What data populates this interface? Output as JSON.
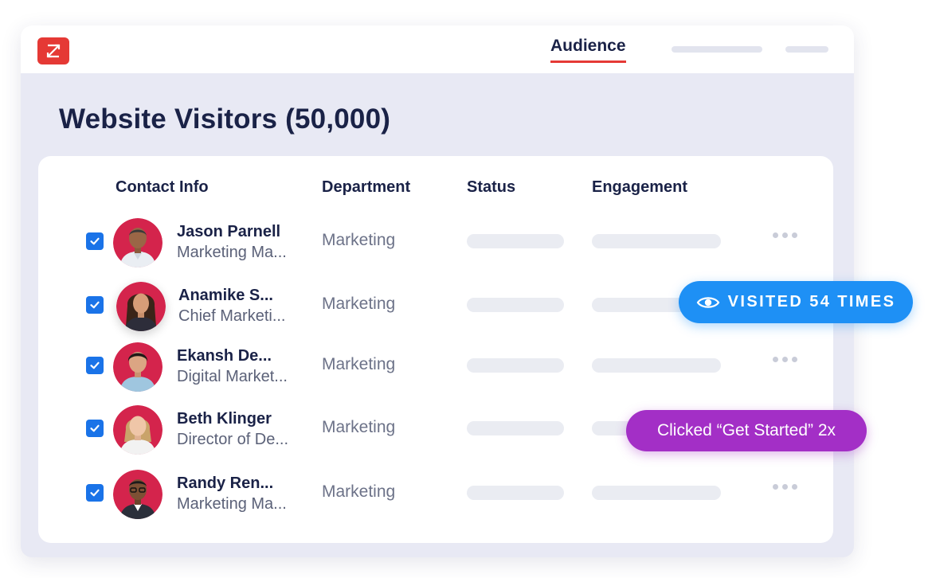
{
  "nav": {
    "active_tab": "Audience"
  },
  "page": {
    "title": "Website Visitors (50,000)"
  },
  "table": {
    "columns": [
      "Contact Info",
      "Department",
      "Status",
      "Engagement"
    ],
    "rows": [
      {
        "name": "Jason Parnell",
        "role": "Marketing Ma...",
        "department": "Marketing",
        "checked": true
      },
      {
        "name": "Anamike S...",
        "role": "Chief Marketi...",
        "department": "Marketing",
        "checked": true
      },
      {
        "name": "Ekansh De...",
        "role": "Digital Market...",
        "department": "Marketing",
        "checked": true
      },
      {
        "name": "Beth Klinger",
        "role": "Director of De...",
        "department": "Marketing",
        "checked": true
      },
      {
        "name": "Randy Ren...",
        "role": "Marketing Ma...",
        "department": "Marketing",
        "checked": true
      }
    ]
  },
  "badges": {
    "visits": "VISITED 54 TIMES",
    "clicks": "Clicked “Get Started” 2x"
  },
  "icons": {
    "logo": "zoominfo-logo-icon",
    "eye": "eye-icon",
    "more": "more-options-icon",
    "check": "checkmark-icon"
  },
  "colors": {
    "brand_red": "#e53935",
    "checkbox_blue": "#1a73e8",
    "visits_blue": "#1e90f5",
    "clicks_purple": "#a32fc6",
    "text_dark": "#1a2247"
  }
}
